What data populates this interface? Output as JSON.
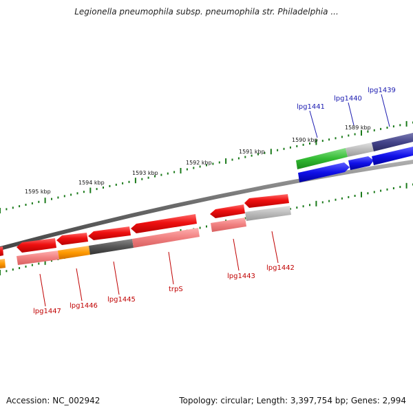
{
  "title": "Legionella pneumophila subsp. pneumophila str. Philadelphia ...",
  "footer": {
    "accession": "Accession: NC_002942",
    "summary": "Topology: circular; Length: 3,397,754 bp; Genes: 2,994"
  },
  "colors": {
    "backbone": "#7a7a7a",
    "tick": "#1a7a1a",
    "forward_label": "#1a1ab0",
    "reverse_label": "#c00000"
  },
  "scale_ticks": [
    {
      "label": "1595 kbp",
      "kbp": 1595
    },
    {
      "label": "1594 kbp",
      "kbp": 1594
    },
    {
      "label": "1593 kbp",
      "kbp": 1593
    },
    {
      "label": "1592 kbp",
      "kbp": 1592
    },
    {
      "label": "1591 kbp",
      "kbp": 1591
    },
    {
      "label": "1590 kbp",
      "kbp": 1590
    },
    {
      "label": "1589 kbp",
      "kbp": 1589
    }
  ],
  "forward_genes": [
    {
      "label": "lpg1441",
      "color": "#22aa22"
    },
    {
      "label": "lpg1440",
      "color": "#1010e0"
    },
    {
      "label": "lpg1439",
      "color": "#3a3a8a"
    }
  ],
  "reverse_genes": [
    {
      "label": "lpg1447",
      "color": "#ee2020"
    },
    {
      "label": "lpg1446",
      "color": "#ff9900"
    },
    {
      "label": "lpg1445",
      "color": "#555555"
    },
    {
      "label": "trpS",
      "color": "#ee2020"
    },
    {
      "label": "lpg1443",
      "color": "#ee2020"
    },
    {
      "label": "lpg1442",
      "color": "#999999"
    }
  ]
}
